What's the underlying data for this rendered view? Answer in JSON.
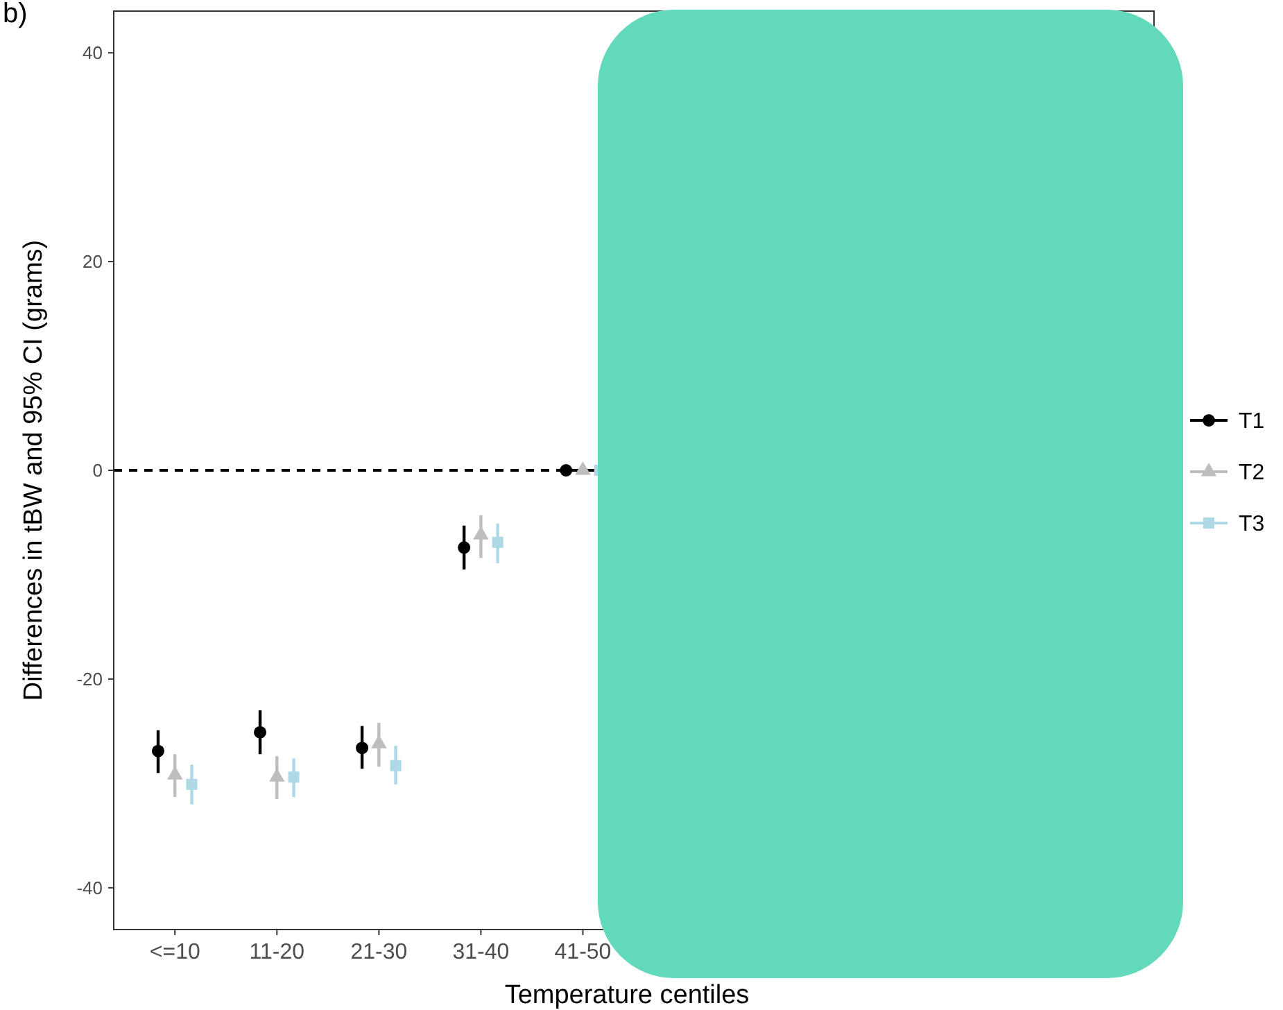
{
  "chart_data": {
    "type": "scatter",
    "xlabel": "Temperature centiles",
    "ylabel": "Differences in tBW and 95% CI (grams)",
    "annotations": [
      "b)"
    ],
    "categories": [
      "<=10",
      "11-20",
      "21-30",
      "31-40",
      "41-50",
      null,
      null,
      null,
      null,
      null
    ],
    "ylim": [
      -44,
      44
    ],
    "yticks": [
      -40,
      -20,
      0,
      20,
      40
    ],
    "grid": false,
    "legend": "right",
    "ref_lines": [
      {
        "axis": "y",
        "value": 0,
        "color": "#000000",
        "line_style": "dashed"
      }
    ],
    "series": [
      {
        "name": "T1",
        "color": "#000000",
        "marker": "circle",
        "values": [
          -26.9,
          -25.1,
          -26.6,
          -7.4,
          0,
          null,
          null,
          null,
          null,
          null
        ],
        "errors": [
          [
            -29.0,
            -24.9
          ],
          [
            -27.2,
            -23.0
          ],
          [
            -28.6,
            -24.5
          ],
          [
            -9.5,
            -5.3
          ],
          null,
          null,
          null,
          null,
          null,
          null
        ]
      },
      {
        "name": "T2",
        "color": "#bebebe",
        "marker": "triangle",
        "values": [
          -29.2,
          -29.4,
          -26.2,
          -6.2,
          0,
          null,
          null,
          null,
          null,
          null
        ],
        "errors": [
          [
            -31.3,
            -27.2
          ],
          [
            -31.5,
            -27.4
          ],
          [
            -28.4,
            -24.2
          ],
          [
            -8.4,
            -4.3
          ],
          null,
          null,
          null,
          null,
          null,
          null
        ]
      },
      {
        "name": "T3",
        "color": "#add8e6",
        "marker": "square",
        "values": [
          -30.1,
          -29.4,
          -28.3,
          -6.9,
          0,
          null,
          null,
          null,
          null,
          null
        ],
        "errors": [
          [
            -32.0,
            -28.2
          ],
          [
            -31.3,
            -27.6
          ],
          [
            -30.1,
            -26.4
          ],
          [
            -8.9,
            -5.1
          ],
          null,
          null,
          null,
          null,
          null,
          null
        ]
      }
    ]
  }
}
